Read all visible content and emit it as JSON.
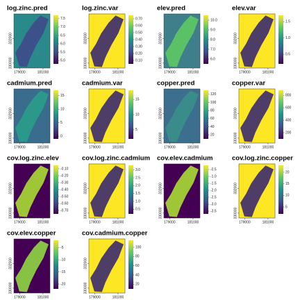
{
  "chart_data": [
    {
      "type": "raster",
      "title": "log.zinc.pred",
      "xlim": [
        178500,
        181600
      ],
      "xticks": [
        179000,
        181000
      ],
      "ylim": [
        329600,
        334000
      ],
      "yticks": [
        330000,
        332000
      ],
      "zlim": [
        4.8,
        7.7
      ],
      "zticks": [
        {
          "value": 5,
          "label": "5.0"
        },
        5.5,
        {
          "value": 6,
          "label": "6.0"
        },
        6.5,
        {
          "value": 7,
          "label": "7.0"
        },
        7.5
      ]
    },
    {
      "type": "raster",
      "title": "log.zinc.var",
      "xlim": [
        178500,
        181600
      ],
      "xticks": [
        179000,
        181000
      ],
      "ylim": [
        329600,
        334000
      ],
      "yticks": [
        330000,
        332000
      ],
      "zlim": [
        0.05,
        0.75
      ],
      "zticks": [
        {
          "value": 0.1,
          "label": "0.10"
        },
        {
          "value": 0.2,
          "label": "0.20"
        },
        {
          "value": 0.3,
          "label": "0.30"
        },
        {
          "value": 0.4,
          "label": "0.40"
        },
        {
          "value": 0.5,
          "label": "0.50"
        },
        {
          "value": 0.6,
          "label": "0.60"
        },
        {
          "value": 0.7,
          "label": "0.70"
        }
      ]
    },
    {
      "type": "raster",
      "title": "elev.pred",
      "xlim": [
        178500,
        181600
      ],
      "xticks": [
        179000,
        181000
      ],
      "ylim": [
        329600,
        334000
      ],
      "yticks": [
        330000,
        332000
      ],
      "zlim": [
        5.5,
        10.5
      ],
      "zticks": [
        {
          "value": 6,
          "label": "6.0"
        },
        {
          "value": 7,
          "label": "7.0"
        },
        {
          "value": 8,
          "label": "8.0"
        },
        {
          "value": 9,
          "label": "9.0"
        },
        {
          "value": 10,
          "label": "10.0"
        }
      ]
    },
    {
      "type": "raster",
      "title": "elev.var",
      "xlim": [
        178500,
        181600
      ],
      "xticks": [
        179000,
        181000
      ],
      "ylim": [
        329600,
        334000
      ],
      "yticks": [
        330000,
        332000
      ],
      "zlim": [
        0.2,
        1.7
      ],
      "zticks": [
        0.5,
        {
          "value": 1,
          "label": "1.0"
        },
        1.5
      ]
    },
    {
      "type": "raster",
      "title": "cadmium.pred",
      "xlim": [
        178500,
        181600
      ],
      "xticks": [
        179000,
        181000
      ],
      "ylim": [
        329600,
        334000
      ],
      "yticks": [
        330000,
        332000
      ],
      "zlim": [
        -1,
        17
      ],
      "zticks": [
        0,
        5,
        10,
        15
      ]
    },
    {
      "type": "raster",
      "title": "cadmium.var",
      "xlim": [
        178500,
        181600
      ],
      "xticks": [
        179000,
        181000
      ],
      "ylim": [
        329600,
        334000
      ],
      "yticks": [
        330000,
        332000
      ],
      "zlim": [
        2,
        18
      ],
      "zticks": [
        5,
        10,
        15
      ]
    },
    {
      "type": "raster",
      "title": "copper.pred",
      "xlim": [
        178500,
        181600
      ],
      "xticks": [
        179000,
        181000
      ],
      "ylim": [
        329600,
        334000
      ],
      "yticks": [
        330000,
        332000
      ],
      "zlim": [
        10,
        130
      ],
      "zticks": [
        20,
        40,
        60,
        80,
        100,
        120
      ]
    },
    {
      "type": "raster",
      "title": "copper.var",
      "xlim": [
        178500,
        181600
      ],
      "xticks": [
        179000,
        181000
      ],
      "ylim": [
        329600,
        334000
      ],
      "yticks": [
        330000,
        332000
      ],
      "zlim": [
        100,
        880
      ],
      "zticks": [
        200,
        400,
        600,
        800
      ]
    },
    {
      "type": "raster",
      "title": "cov.log.zinc.elev",
      "xlim": [
        178500,
        181600
      ],
      "xticks": [
        179000,
        181000
      ],
      "ylim": [
        329600,
        334000
      ],
      "yticks": [
        330000,
        332000
      ],
      "zlim": [
        -0.75,
        -0.05
      ],
      "zticks": [
        {
          "value": -0.1,
          "label": "-0.10"
        },
        {
          "value": -0.2,
          "label": "-0.20"
        },
        {
          "value": -0.3,
          "label": "-0.30"
        },
        {
          "value": -0.4,
          "label": "-0.40"
        },
        {
          "value": -0.5,
          "label": "-0.50"
        },
        {
          "value": -0.6,
          "label": "-0.60"
        },
        {
          "value": -0.7,
          "label": "-0.70"
        }
      ]
    },
    {
      "type": "raster",
      "title": "cov.log.zinc.cadmium",
      "xlim": [
        178500,
        181600
      ],
      "xticks": [
        179000,
        181000
      ],
      "ylim": [
        329600,
        334000
      ],
      "yticks": [
        330000,
        332000
      ],
      "zlim": [
        0.2,
        3.3
      ],
      "zticks": [
        0.5,
        {
          "value": 1,
          "label": "1.0"
        },
        1.5,
        {
          "value": 2,
          "label": "2.0"
        },
        2.5,
        {
          "value": 3,
          "label": "3.0"
        }
      ]
    },
    {
      "type": "raster",
      "title": "cov.elev.cadmium",
      "xlim": [
        178500,
        181600
      ],
      "xticks": [
        179000,
        181000
      ],
      "ylim": [
        329600,
        334000
      ],
      "yticks": [
        330000,
        332000
      ],
      "zlim": [
        -3.7,
        -0.2
      ],
      "zticks": [
        -0.5,
        {
          "value": -1,
          "label": "-1.0"
        },
        -1.5,
        {
          "value": -2,
          "label": "-2.0"
        },
        -2.5,
        {
          "value": -3,
          "label": "-3.0"
        },
        -3.5
      ]
    },
    {
      "type": "raster",
      "title": "cov.log.zinc.copper",
      "xlim": [
        178500,
        181600
      ],
      "xticks": [
        179000,
        181000
      ],
      "ylim": [
        329600,
        334000
      ],
      "yticks": [
        330000,
        332000
      ],
      "zlim": [
        2,
        23
      ],
      "zticks": [
        5,
        10,
        15,
        20
      ]
    },
    {
      "type": "raster",
      "title": "cov.elev.copper",
      "xlim": [
        178500,
        181600
      ],
      "xticks": [
        179000,
        181000
      ],
      "ylim": [
        329600,
        334000
      ],
      "yticks": [
        330000,
        332000
      ],
      "zlim": [
        -22,
        -2
      ],
      "zticks": [
        -5,
        -10,
        -15,
        -20
      ]
    },
    {
      "type": "raster",
      "title": "cov.cadmium.copper",
      "xlim": [
        178500,
        181600
      ],
      "xticks": [
        179000,
        181000
      ],
      "ylim": [
        329600,
        334000
      ],
      "yticks": [
        330000,
        332000
      ],
      "zlim": [
        10,
        115
      ],
      "zticks": [
        20,
        40,
        60,
        80,
        100
      ]
    }
  ]
}
